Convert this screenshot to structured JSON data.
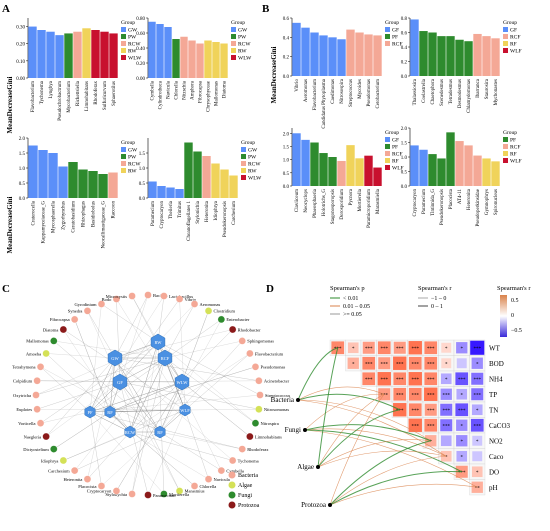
{
  "colors": {
    "GW": "#5b8ff9",
    "PW": "#2e8b2e",
    "RCW": "#f4a896",
    "RW": "#f0d35a",
    "WLW": "#c8102e",
    "GF": "#5b8ff9",
    "PF": "#2e8b2e",
    "RCF": "#f4a896",
    "RF": "#f0d35a",
    "WLF": "#c8102e",
    "Bacteria": "#f4a896",
    "Algae": "#d4e157",
    "Fungi": "#2e8b2e",
    "Protozoa": "#8b1a1a",
    "hex": "#4a90e2"
  },
  "panels": {
    "A": "A",
    "B": "B",
    "C": "C",
    "D": "D"
  },
  "ylabel": "MeanDecreaseGini",
  "legend_title": "Group",
  "chart_data": [
    {
      "id": "A1",
      "type": "bar",
      "ylim": [
        0,
        0.35
      ],
      "yticks": [
        "0.00",
        "0.10",
        "0.20",
        "0.30"
      ],
      "legend": [
        "GW",
        "PW",
        "RCW",
        "RW",
        "WLW"
      ],
      "categories": [
        "Flavobacterium",
        "Tychonema",
        "Lyngbya",
        "Pseudochrobactrum",
        "Mycobacterium",
        "Rickettsiella",
        "Limnohabitans",
        "Rhodoferax",
        "Sulfuricurvum",
        "Sphaerotilus"
      ],
      "values": [
        0.3,
        0.28,
        0.27,
        0.25,
        0.26,
        0.27,
        0.29,
        0.28,
        0.27,
        0.26
      ],
      "groups": [
        "GW",
        "GW",
        "GW",
        "GW",
        "PW",
        "RCW",
        "RW",
        "WLW",
        "WLW",
        "WLW"
      ]
    },
    {
      "id": "A2",
      "type": "bar",
      "ylim": [
        0,
        0.8
      ],
      "yticks": [
        "0.00",
        "0.20",
        "0.40",
        "0.60",
        "0.80"
      ],
      "legend": [
        "GW",
        "PW",
        "RCW",
        "RW",
        "WLW"
      ],
      "categories": [
        "Cymbella",
        "Cylindrotheca",
        "Navicula",
        "Chlorella",
        "Nitzschia",
        "Amphora",
        "Fibrocapsa",
        "Chrysophyceae",
        "Mallomonas",
        "Diatoma"
      ],
      "values": [
        0.75,
        0.72,
        0.68,
        0.52,
        0.55,
        0.5,
        0.46,
        0.5,
        0.48,
        0.46
      ],
      "groups": [
        "GW",
        "GW",
        "GW",
        "PW",
        "RCW",
        "RCW",
        "RCW",
        "RW",
        "RW",
        "RW"
      ]
    },
    {
      "id": "A3",
      "type": "bar",
      "ylim": [
        0,
        2.0
      ],
      "yticks": [
        "0.0",
        "0.5",
        "1.0",
        "1.5",
        "2.0"
      ],
      "legend": [
        "GW",
        "PW",
        "RCW",
        "RW"
      ],
      "categories": [
        "Craterocella",
        "Kappamyceiaceae_G",
        "Mycosphaerella",
        "Zygorhynchus",
        "Ceratobasidium",
        "Rhizophagus",
        "Basidiobolus",
        "Neocallimastigaceae_G",
        "Raccoon"
      ],
      "values": [
        1.75,
        1.6,
        1.5,
        1.05,
        1.2,
        0.95,
        0.9,
        0.8,
        0.85
      ],
      "groups": [
        "GW",
        "GW",
        "GW",
        "GW",
        "PW",
        "PW",
        "PW",
        "PW",
        "RCW"
      ]
    },
    {
      "id": "A4",
      "type": "bar",
      "ylim": [
        0,
        2.0
      ],
      "yticks": [
        "0.0",
        "0.5",
        "1.0",
        "1.5"
      ],
      "legend": [
        "GW",
        "PW",
        "RCW",
        "RW",
        "WLW"
      ],
      "categories": [
        "Paramecium",
        "Cryptocaryon",
        "Theileria",
        "Trimitus",
        "Choanoflagellates 1",
        "Stylonichia",
        "Heteronita",
        "Idiophrya",
        "Pseudokeronopsis",
        "Carchesium"
      ],
      "values": [
        0.55,
        0.4,
        0.35,
        0.3,
        1.85,
        1.55,
        1.4,
        1.15,
        0.95,
        0.75
      ],
      "groups": [
        "GW",
        "GW",
        "GW",
        "GW",
        "PW",
        "PW",
        "RCW",
        "RW",
        "RW",
        "RW"
      ]
    },
    {
      "id": "B1",
      "type": "bar",
      "ylim": [
        0,
        0.6
      ],
      "yticks": [
        "0.0",
        "0.2",
        "0.4",
        "0.6"
      ],
      "legend": [
        "GF",
        "PF",
        "RCF"
      ],
      "categories": [
        "Vibrio",
        "Aeromonas",
        "Flavobacterium",
        "Candidatus Phytoplasma",
        "Caedimonas",
        "Nitrosospira",
        "Streptococcus",
        "Mycoides",
        "Pseudomonas",
        "Cetobacterium"
      ],
      "values": [
        0.55,
        0.5,
        0.45,
        0.42,
        0.4,
        0.38,
        0.48,
        0.45,
        0.43,
        0.42
      ],
      "groups": [
        "GF",
        "GF",
        "GF",
        "GF",
        "GF",
        "GF",
        "RCF",
        "RCF",
        "RCF",
        "RCF"
      ]
    },
    {
      "id": "B2",
      "type": "bar",
      "ylim": [
        0,
        0.8
      ],
      "yticks": [
        "0.0",
        "0.2",
        "0.4",
        "0.6",
        "0.8"
      ],
      "legend": [
        "GF",
        "RCF",
        "RF",
        "WLF"
      ],
      "categories": [
        "Thalassiosira",
        "Coelastrella",
        "Chaetophora",
        "Scenedesmus",
        "Tetradesmus",
        "Desmodesmus",
        "Chlamydomonas",
        "Ibarranca",
        "Staurosira",
        "Mychonastes"
      ],
      "values": [
        0.78,
        0.62,
        0.6,
        0.55,
        0.55,
        0.5,
        0.48,
        0.58,
        0.55,
        0.52
      ],
      "groups": [
        "GF",
        "PF",
        "PF",
        "PF",
        "PF",
        "PF",
        "PF",
        "RCF",
        "RCF",
        "RCF"
      ]
    },
    {
      "id": "B3",
      "type": "bar",
      "ylim": [
        0,
        2.2
      ],
      "yticks": [
        "0.0",
        "0.5",
        "1.0",
        "1.5",
        "2.0"
      ],
      "legend": [
        "GF",
        "PF",
        "RCF",
        "RF",
        "WLF"
      ],
      "categories": [
        "Claviiceum",
        "Neocyclops",
        "Phaeosphaeria",
        "Holotrichs_G",
        "Stagonosporopsis",
        "Dorosporidium",
        "Pycnora",
        "Mortierella",
        "Paramicroporidium",
        "Marasmiella"
      ],
      "values": [
        2.0,
        1.75,
        1.65,
        1.25,
        1.1,
        0.95,
        1.55,
        1.05,
        1.15,
        0.7
      ],
      "groups": [
        "GF",
        "GF",
        "PF",
        "PF",
        "PF",
        "RCF",
        "RF",
        "RF",
        "WLF",
        "WLF"
      ]
    },
    {
      "id": "B4",
      "type": "bar",
      "ylim": [
        0,
        2.0
      ],
      "yticks": [
        "0.0",
        "0.5",
        "1.0",
        "1.5",
        "2.0"
      ],
      "legend": [
        "PF",
        "RCF",
        "RF",
        "WLF"
      ],
      "categories": [
        "Cryptocaryon",
        "Paramecium",
        "Tintinnida_G",
        "Pseudokeronopsis",
        "Placocista",
        "AT4-11",
        "Heteronita",
        "Pseudoperkinsidae",
        "Gymnophrys",
        "Spironucleus"
      ],
      "values": [
        1.4,
        1.25,
        1.1,
        0.95,
        1.85,
        1.55,
        1.4,
        1.05,
        0.95,
        0.85
      ],
      "groups": [
        "GF",
        "GF",
        "PF",
        "PF",
        "PF",
        "RCF",
        "RCF",
        "RCF",
        "RF",
        "RF"
      ]
    }
  ],
  "network": {
    "hubs": [
      "GW",
      "RW",
      "GF",
      "RCF",
      "PW",
      "PF",
      "RCW",
      "RCF2",
      "WLF",
      "WLW"
    ],
    "hub_labels": [
      "GW",
      "RW",
      "GF",
      "RCF",
      "WLW",
      "PF",
      "RCW",
      "RF",
      "WLF",
      "RF"
    ],
    "legend": [
      "Bacteria",
      "Algae",
      "Fungi",
      "Protozoa"
    ],
    "nodes": [
      "Bacillus",
      "Lactobacillus",
      "Vibrio",
      "Aeromonas",
      "Clostridium",
      "Enterobacter",
      "Rhodobacter",
      "Sphingomonas",
      "Flavobacterium",
      "Pseudomonas",
      "Acinetobacter",
      "Streptococcus",
      "Nitrosomonas",
      "Nitrospira",
      "Limnohabitans",
      "Rhodoferax",
      "Tychonema",
      "Cymbella",
      "Navicula",
      "Chlorella",
      "Marasmius",
      "Mortierella",
      "Paramecium",
      "Stylonychia",
      "Cryptocaryon",
      "Placocista",
      "Heteronita",
      "Carchesium",
      "Idiophrya",
      "Dictyostelium",
      "Naegleria",
      "Vorticella",
      "Euplotes",
      "Oxytricha",
      "Colpidium",
      "Tetrahymena",
      "Amoeba",
      "Mallomonas",
      "Diatoma",
      "Fibrocapsa",
      "Synedra",
      "Gyrodinium",
      "Bodo",
      "Microcystis"
    ]
  },
  "heatmap": {
    "legend_p_title": "Spearman's p",
    "legend_p": [
      "< 0.01",
      "0.01 – 0.05",
      ">= 0.05"
    ],
    "legend_r_title": "Spearman's r",
    "legend_r_lines": [
      "−1 – 0",
      "0 – 1"
    ],
    "legend_color_title": "Spearman's r",
    "color_ticks": [
      "0.5",
      "0",
      "−0.5"
    ],
    "rows": [
      "WT",
      "BOD",
      "NH4",
      "TP",
      "TN",
      "CaCO3",
      "NO2",
      "Caco",
      "DO",
      "pH"
    ],
    "communities": [
      "Bacteria",
      "Fungi",
      "Algae",
      "Protozoa"
    ],
    "values": [
      [
        0.6,
        0.3,
        0.5,
        0.6,
        0.5,
        0.7,
        0.6,
        0.2,
        -0.4,
        -0.8
      ],
      [
        null,
        0.4,
        0.6,
        0.5,
        0.7,
        0.6,
        0.6,
        0.2,
        -0.2,
        -0.4
      ],
      [
        null,
        null,
        0.6,
        0.7,
        0.6,
        0.7,
        0.6,
        -0.3,
        -0.6,
        -0.5
      ],
      [
        null,
        null,
        null,
        0.5,
        0.6,
        0.6,
        0.7,
        -0.4,
        -0.3,
        -0.5
      ],
      [
        null,
        null,
        null,
        null,
        0.7,
        0.6,
        0.5,
        -0.5,
        -0.6,
        -0.3
      ],
      [
        null,
        null,
        null,
        null,
        null,
        0.7,
        0.6,
        -0.5,
        -0.4,
        -0.6
      ],
      [
        null,
        null,
        null,
        null,
        null,
        null,
        0.4,
        -0.3,
        -0.4,
        -0.2
      ],
      [
        null,
        null,
        null,
        null,
        null,
        null,
        null,
        0.3,
        -0.3,
        -0.2
      ],
      [
        null,
        null,
        null,
        null,
        null,
        null,
        null,
        null,
        0.5,
        0.3
      ],
      [
        null,
        null,
        null,
        null,
        null,
        null,
        null,
        null,
        null,
        0.4
      ]
    ],
    "stars": [
      [
        "***",
        "*",
        "***",
        "***",
        "***",
        "***",
        "***",
        "*",
        "*",
        "***"
      ],
      [
        null,
        "*",
        "***",
        "***",
        "***",
        "***",
        "***",
        "*",
        "",
        "*"
      ],
      [
        null,
        null,
        "***",
        "***",
        "***",
        "***",
        "***",
        "*",
        "***",
        "***"
      ],
      [
        null,
        null,
        null,
        "***",
        "***",
        "***",
        "***",
        "***",
        "*",
        "***"
      ],
      [
        null,
        null,
        null,
        null,
        "***",
        "***",
        "***",
        "***",
        "***",
        "*"
      ],
      [
        null,
        null,
        null,
        null,
        null,
        "***",
        "***",
        "***",
        "*",
        "***"
      ],
      [
        null,
        null,
        null,
        null,
        null,
        null,
        "*",
        "",
        "*",
        "*"
      ],
      [
        null,
        null,
        null,
        null,
        null,
        null,
        null,
        "*",
        "*",
        ""
      ],
      [
        null,
        null,
        null,
        null,
        null,
        null,
        null,
        null,
        "***",
        "*"
      ],
      [
        null,
        null,
        null,
        null,
        null,
        null,
        null,
        null,
        null,
        "**"
      ]
    ]
  }
}
